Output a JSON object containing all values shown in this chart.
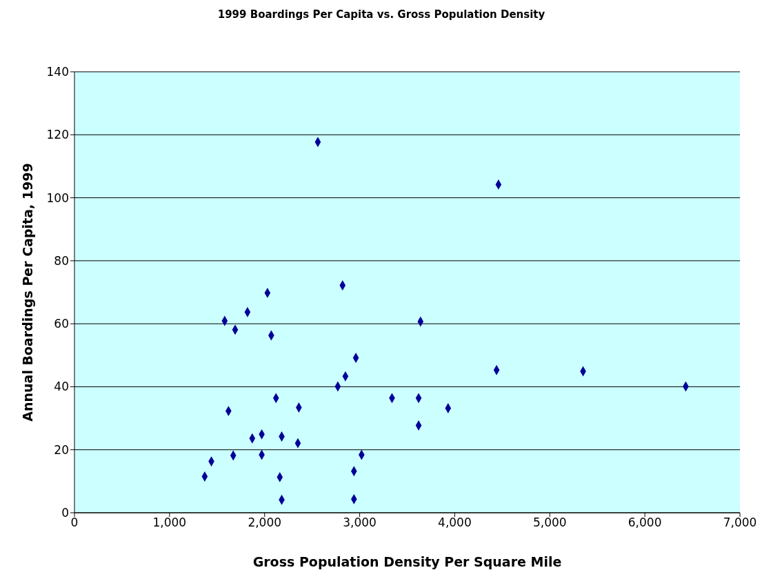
{
  "chart_data": {
    "type": "scatter",
    "title": "1999 Boardings Per Capita vs. Gross Population Density",
    "xlabel": "Gross Population Density Per Square Mile",
    "ylabel": "Annual Boardings Per Capita, 1999",
    "x": [
      2560,
      4460,
      2820,
      2030,
      1820,
      1580,
      3640,
      1690,
      2070,
      2960,
      2850,
      4440,
      5350,
      6430,
      2770,
      2120,
      3340,
      3620,
      3930,
      2360,
      1620,
      3620,
      1970,
      1870,
      2180,
      2350,
      1970,
      1670,
      3020,
      1440,
      2940,
      1370,
      2160,
      2180,
      2940
    ],
    "series": [
      {
        "color": "#000099",
        "values": [
          117.7,
          104.2,
          72.2,
          69.8,
          63.7,
          60.9,
          60.7,
          58.1,
          56.3,
          49.2,
          43.3,
          45.3,
          44.9,
          40.1,
          40.1,
          36.4,
          36.4,
          36.4,
          33.2,
          33.4,
          32.3,
          27.7,
          24.9,
          23.6,
          24.2,
          22.1,
          18.4,
          18.2,
          18.4,
          16.3,
          13.2,
          11.5,
          11.3,
          4.1,
          4.3
        ]
      }
    ],
    "xlim": [
      0,
      7000
    ],
    "xticks": [
      0,
      {
        "value": 1000,
        "label": "1,000"
      },
      {
        "value": 2000,
        "label": "2,000"
      },
      {
        "value": 3000,
        "label": "3,000"
      },
      {
        "value": 4000,
        "label": "4,000"
      },
      {
        "value": 5000,
        "label": "5,000"
      },
      {
        "value": 6000,
        "label": "6,000"
      },
      {
        "value": 7000,
        "label": "7,000"
      }
    ],
    "ylim": [
      0,
      140
    ],
    "yticks": [
      0,
      20,
      40,
      60,
      80,
      100,
      120,
      140
    ],
    "grid": "y",
    "marker": "diamond"
  }
}
